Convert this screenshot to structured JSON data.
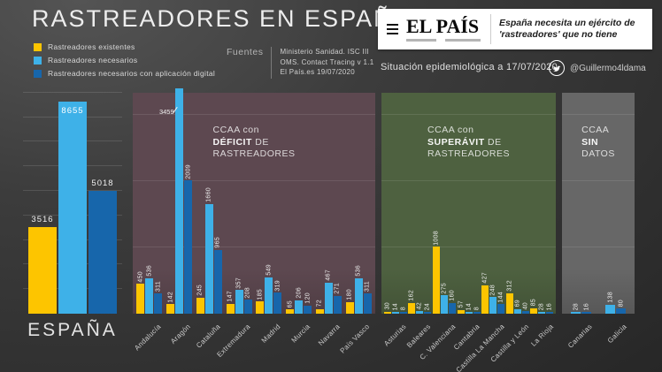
{
  "title": "RASTREADORES EN ESPAÑA",
  "legend": [
    {
      "label": "Rastreadores existentes",
      "color": "#fdc500"
    },
    {
      "label": "Rastreadores necesarios",
      "color": "#3eb1e8"
    },
    {
      "label": "Rastreadores necesarios con aplicación digital",
      "color": "#1766ab"
    }
  ],
  "sources": {
    "label": "Fuentes",
    "lines": [
      "Ministerio Sanidad. ISC III",
      "OMS. Contact Tracing v 1.1",
      "El País.es 19/07/2020"
    ]
  },
  "news": {
    "brand": "EL PAÍS",
    "headline_line1": "España necesita un ejército de",
    "headline_line2": "'rastreadores' que no tiene"
  },
  "status": {
    "text": "Situación epidemiológica a 17/07/2020",
    "handle": "@Guillermo4ldama"
  },
  "chart_data": {
    "type": "bar",
    "series": [
      "Rastreadores existentes",
      "Rastreadores necesarios",
      "Rastreadores necesarios con aplicación digital"
    ],
    "colors": [
      "#fdc500",
      "#3eb1e8",
      "#1766ab"
    ],
    "gridline_step_units": 1000,
    "espana": {
      "label": "ESPAÑA",
      "values": [
        3516,
        8655,
        5018
      ]
    },
    "sections": [
      {
        "id": "deficit",
        "name": "CCAA con déficit de rastreadores",
        "bg": "#5d4850",
        "title_segments": [
          [
            {
              "t": "CCAA con",
              "b": false
            }
          ],
          [
            {
              "t": "DÉFICIT",
              "b": true
            },
            {
              "t": " DE",
              "b": false
            }
          ],
          [
            {
              "t": "RASTREADORES",
              "b": false
            }
          ]
        ],
        "groups": [
          {
            "label": "Andalucía",
            "values": [
              450,
              536,
              311
            ]
          },
          {
            "label": "Aragón",
            "values": [
              142,
              3459,
              2009
            ],
            "truncated_series": 1
          },
          {
            "label": "Cataluña",
            "values": [
              245,
              1660,
              965
            ]
          },
          {
            "label": "Extremadura",
            "values": [
              147,
              357,
              208
            ]
          },
          {
            "label": "Madrid",
            "values": [
              185,
              549,
              319
            ]
          },
          {
            "label": "Murcia",
            "values": [
              65,
              206,
              120
            ]
          },
          {
            "label": "Navarra",
            "values": [
              72,
              467,
              271
            ]
          },
          {
            "label": "País Vasco",
            "values": [
              180,
              536,
              311
            ]
          }
        ]
      },
      {
        "id": "superavit",
        "name": "CCAA con superávit de rastreadores",
        "bg": "#4e6140",
        "title_segments": [
          [
            {
              "t": "CCAA con",
              "b": false
            }
          ],
          [
            {
              "t": "SUPERÁVIT",
              "b": true
            },
            {
              "t": " DE",
              "b": false
            }
          ],
          [
            {
              "t": "RASTREADORES",
              "b": false
            }
          ]
        ],
        "groups": [
          {
            "label": "Asturias",
            "values": [
              30,
              14,
              8
            ]
          },
          {
            "label": "Baleares",
            "values": [
              162,
              42,
              24
            ]
          },
          {
            "label": "C. Valenciana",
            "values": [
              1008,
              275,
              160
            ]
          },
          {
            "label": "Cantabria",
            "values": [
              57,
              14,
              8
            ]
          },
          {
            "label": "Castilla La Mancha",
            "values": [
              427,
              248,
              144
            ]
          },
          {
            "label": "Castilla y León",
            "values": [
              312,
              69,
              40
            ]
          },
          {
            "label": "La Rioja",
            "values": [
              85,
              28,
              16
            ]
          }
        ]
      },
      {
        "id": "sindatos",
        "name": "CCAA sin datos",
        "bg": "#676767",
        "title_segments": [
          [
            {
              "t": "CCAA",
              "b": false
            }
          ],
          [
            {
              "t": "SIN",
              "b": true
            }
          ],
          [
            {
              "t": "DATOS",
              "b": false
            }
          ]
        ],
        "groups": [
          {
            "label": "Canarias",
            "values": [
              null,
              28,
              16
            ]
          },
          {
            "label": "Galicia",
            "values": [
              null,
              138,
              80
            ]
          }
        ]
      }
    ]
  }
}
